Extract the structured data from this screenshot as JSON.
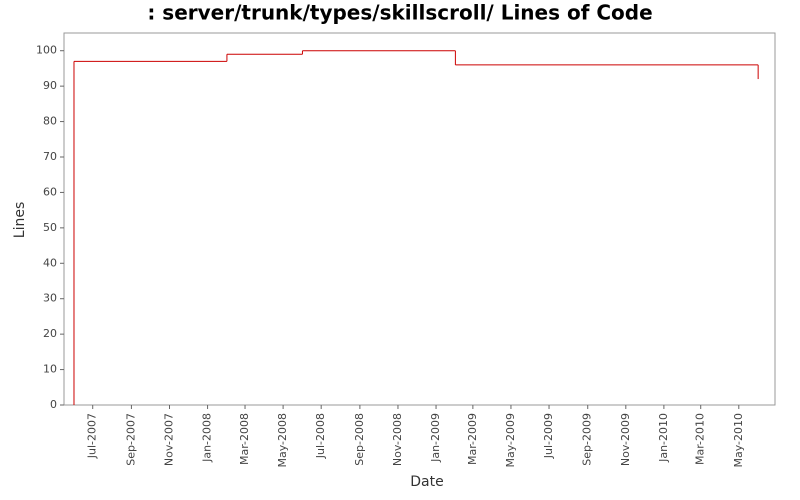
{
  "chart_data": {
    "type": "step",
    "title": ": server/trunk/types/skillscroll/ Lines of Code",
    "x_label": "Date",
    "y_label": "Lines",
    "x": [
      "2007-06",
      "2007-06",
      "2008-02",
      "2008-06",
      "2009-02",
      "2010-06"
    ],
    "series": [
      {
        "name": "Lines",
        "color": "#cc0000",
        "values": [
          0,
          97,
          99,
          100,
          96,
          92
        ]
      }
    ],
    "xlim": [
      "2007-05-16",
      "2010-06-28"
    ],
    "xticks": [
      {
        "value": "2007-07",
        "label": "Jul-2007"
      },
      {
        "value": "2007-09",
        "label": "Sep-2007"
      },
      {
        "value": "2007-11",
        "label": "Nov-2007"
      },
      {
        "value": "2008-01",
        "label": "Jan-2008"
      },
      {
        "value": "2008-03",
        "label": "Mar-2008"
      },
      {
        "value": "2008-05",
        "label": "May-2008"
      },
      {
        "value": "2008-07",
        "label": "Jul-2008"
      },
      {
        "value": "2008-09",
        "label": "Sep-2008"
      },
      {
        "value": "2008-11",
        "label": "Nov-2008"
      },
      {
        "value": "2009-01",
        "label": "Jan-2009"
      },
      {
        "value": "2009-03",
        "label": "Mar-2009"
      },
      {
        "value": "2009-05",
        "label": "May-2009"
      },
      {
        "value": "2009-07",
        "label": "Jul-2009"
      },
      {
        "value": "2009-09",
        "label": "Sep-2009"
      },
      {
        "value": "2009-11",
        "label": "Nov-2009"
      },
      {
        "value": "2010-01",
        "label": "Jan-2010"
      },
      {
        "value": "2010-03",
        "label": "Mar-2010"
      },
      {
        "value": "2010-05",
        "label": "May-2010"
      }
    ],
    "ylim": [
      0,
      105
    ],
    "yticks": [
      0,
      10,
      20,
      30,
      40,
      50,
      60,
      70,
      80,
      90,
      100
    ]
  }
}
